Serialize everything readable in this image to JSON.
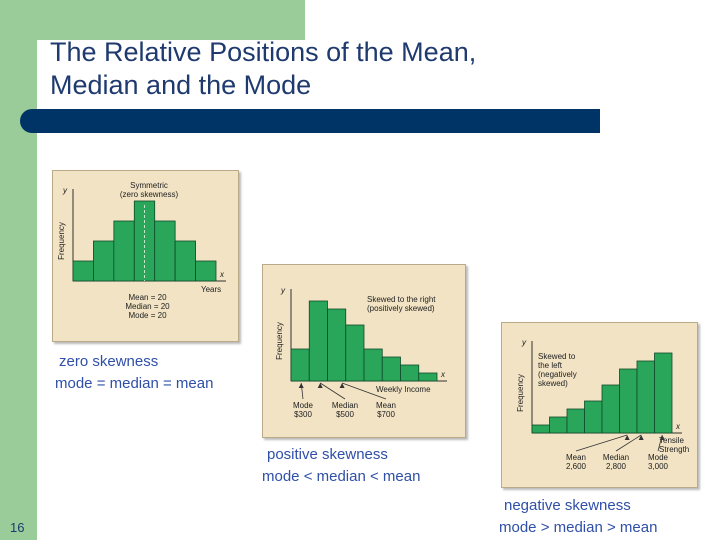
{
  "slide": {
    "title": "The Relative Positions of the Mean,\nMedian and the Mode",
    "number": "16"
  },
  "colors": {
    "bar": "#2aa65a",
    "bar_edge": "#0f4a2a",
    "panel_bg": "#f1e3c4",
    "title_bar": "#003366",
    "caption": "#2f4fa8"
  },
  "chart_data": [
    {
      "type": "bar",
      "title": "Symmetric\n(zero skewness)",
      "xlabel": "Years",
      "ylabel": "Frequency",
      "x_axis_letter": "x",
      "y_axis_letter": "y",
      "values": [
        2,
        4,
        6,
        8,
        6,
        4,
        2
      ],
      "annotations": [
        "Mean = 20",
        "Median = 20",
        "Mode = 20"
      ],
      "caption": [
        "zero skewness",
        "mode = median = mean"
      ]
    },
    {
      "type": "bar",
      "title": "Skewed to the right\n(positively skewed)",
      "xlabel": "Weekly Income",
      "ylabel": "Frequency",
      "x_axis_letter": "x",
      "y_axis_letter": "y",
      "values": [
        4,
        10,
        9,
        7,
        4,
        3,
        2,
        1
      ],
      "markers": [
        {
          "label": "Mode",
          "value": "$300"
        },
        {
          "label": "Median",
          "value": "$500"
        },
        {
          "label": "Mean",
          "value": "$700"
        }
      ],
      "caption": [
        "positive skewness",
        "mode < median < mean"
      ]
    },
    {
      "type": "bar",
      "title": "Skewed to\nthe left\n(negatively\nskewed)",
      "xlabel": "Tensile\nStrength",
      "ylabel": "Frequency",
      "x_axis_letter": "x",
      "y_axis_letter": "y",
      "values": [
        1,
        2,
        3,
        4,
        6,
        8,
        9,
        10
      ],
      "markers": [
        {
          "label": "Mean",
          "value": "2,600"
        },
        {
          "label": "Median",
          "value": "2,800"
        },
        {
          "label": "Mode",
          "value": "3,000"
        }
      ],
      "caption": [
        "negative skewness",
        "mode > median > mean"
      ]
    }
  ]
}
